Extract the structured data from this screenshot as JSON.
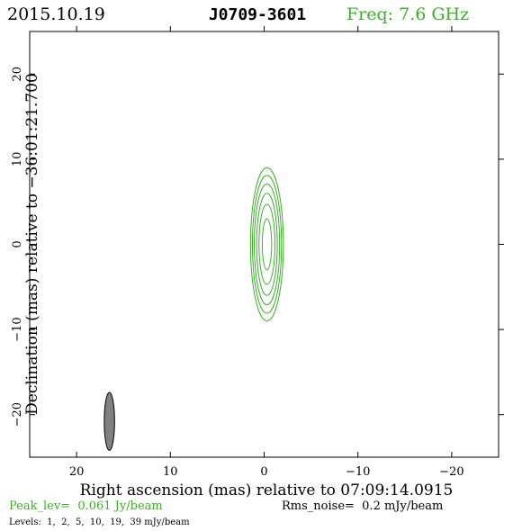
{
  "header": {
    "date": "2015.10.19",
    "source": "J0709-3601",
    "freq": "Freq: 7.6 GHz"
  },
  "footer": {
    "peak": "Peak_lev=  0.061 Jy/beam",
    "rms": "Rms_noise=  0.2 mJy/beam",
    "levels": "Levels:  1,  2,  5,  10,  19,  39 mJy/beam"
  },
  "colors": {
    "contour": "#3cb028",
    "beam_fill": "#808080",
    "frame": "#000000"
  },
  "chart_data": {
    "type": "contour",
    "title": "J0709-3601",
    "xlabel": "Right ascension (mas) relative to 07:09:14.0915",
    "ylabel": "Declination (mas) relative to −36:01:21.700",
    "xlim": [
      25,
      -25
    ],
    "ylim": [
      -25,
      25
    ],
    "x_ticks": [
      20,
      10,
      0,
      -10,
      -20
    ],
    "y_ticks": [
      20,
      10,
      0,
      -10,
      -20
    ],
    "x_tick_labels": [
      "20",
      "10",
      "0",
      "−10",
      "−20"
    ],
    "y_tick_labels": [
      "20",
      "10",
      "0",
      "−10",
      "−20"
    ],
    "levels_mJy": [
      1,
      2,
      5,
      10,
      19,
      39
    ],
    "contours": [
      {
        "level": 1,
        "x": -0.3,
        "y": 0.0,
        "semi_major": 9.0,
        "semi_minor": 1.75
      },
      {
        "level": 2,
        "x": -0.3,
        "y": 0.0,
        "semi_major": 8.1,
        "semi_minor": 1.55
      },
      {
        "level": 5,
        "x": -0.3,
        "y": 0.0,
        "semi_major": 7.1,
        "semi_minor": 1.35
      },
      {
        "level": 10,
        "x": -0.3,
        "y": 0.0,
        "semi_major": 6.0,
        "semi_minor": 1.1
      },
      {
        "level": 19,
        "x": -0.3,
        "y": 0.0,
        "semi_major": 4.7,
        "semi_minor": 0.85
      },
      {
        "level": 39,
        "x": -0.3,
        "y": 0.0,
        "semi_major": 3.0,
        "semi_minor": 0.5
      }
    ],
    "beam": {
      "x": 16.5,
      "y": -20.8,
      "major": 6.8,
      "minor": 1.1,
      "pa_deg": 0
    }
  }
}
